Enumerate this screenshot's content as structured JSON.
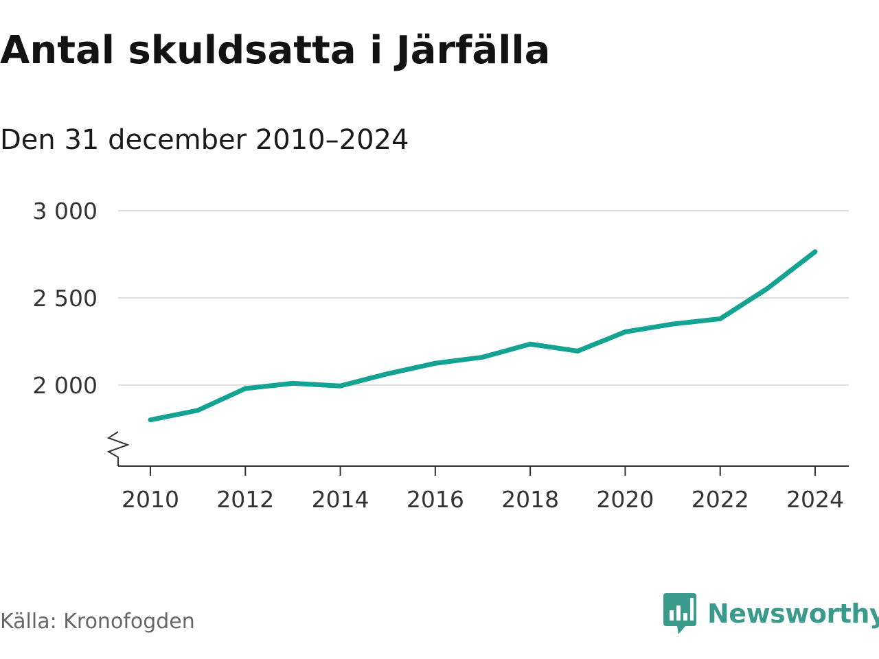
{
  "header": {
    "title": "Antal skuldsatta i Järfälla",
    "subtitle": "Den 31 december 2010–2024"
  },
  "footer": {
    "source": "Källa: Kronofogden",
    "brand": "Newsworthy"
  },
  "colors": {
    "line": "#14a393",
    "grid": "#dddddd",
    "axis": "#333333",
    "brand": "#3a9b8c"
  },
  "chart_data": {
    "type": "line",
    "title": "Antal skuldsatta i Järfälla",
    "subtitle": "Den 31 december 2010–2024",
    "xlabel": "",
    "ylabel": "",
    "x": [
      2010,
      2011,
      2012,
      2013,
      2014,
      2015,
      2016,
      2017,
      2018,
      2019,
      2020,
      2021,
      2022,
      2023,
      2024
    ],
    "series": [
      {
        "name": "Antal skuldsatta",
        "values": [
          1800,
          1855,
          1980,
          2010,
          1995,
          2065,
          2125,
          2160,
          2235,
          2195,
          2305,
          2350,
          2380,
          2555,
          2765
        ]
      }
    ],
    "xticks": [
      2010,
      2012,
      2014,
      2016,
      2018,
      2020,
      2022,
      2024
    ],
    "xtick_labels": [
      "2010",
      "2012",
      "2014",
      "2016",
      "2018",
      "2020",
      "2022",
      "2024"
    ],
    "yticks": [
      2000,
      2500,
      3000
    ],
    "ytick_labels": [
      "2 000",
      "2 500",
      "3 000"
    ],
    "ylim": [
      1535,
      3000
    ],
    "y_axis_break": true,
    "grid": true,
    "legend": "none"
  }
}
